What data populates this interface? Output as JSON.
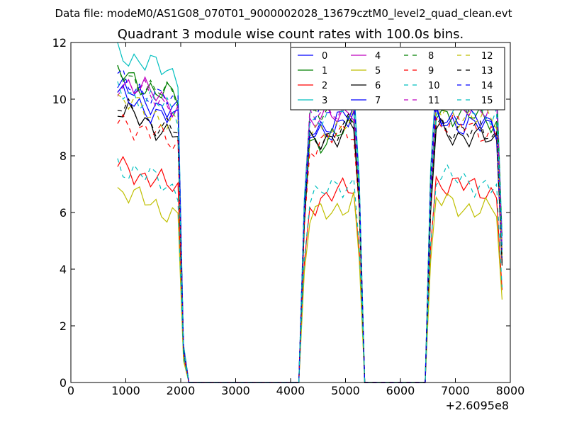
{
  "header": {
    "suptitle": "Data file: modeM0/AS1G08_070T01_9000002028_13679cztM0_level2_quad_clean.evt"
  },
  "chart_data": {
    "type": "line",
    "title": "Quadrant 3 module wise count rates with 100.0s bins.",
    "xlabel": "",
    "ylabel": "",
    "x_offset_label": "+2.6095e8",
    "xlim": [
      0,
      8000
    ],
    "ylim": [
      0,
      12
    ],
    "xticks": [
      "0",
      "1000",
      "2000",
      "3000",
      "4000",
      "5000",
      "6000",
      "7000",
      "8000"
    ],
    "yticks": [
      "0",
      "2",
      "4",
      "6",
      "8",
      "10",
      "12"
    ],
    "grid": false,
    "legend_position": "top-right",
    "legend_columns": 4,
    "segments": [
      {
        "x_start": 850,
        "x_end": 1950
      },
      {
        "x_start": 4350,
        "x_end": 5150
      },
      {
        "x_start": 6650,
        "x_end": 7750
      }
    ],
    "series": [
      {
        "name": "0",
        "color": "#0000ff",
        "dash": false,
        "base": [
          10.0,
          8.9,
          9.0
        ]
      },
      {
        "name": "1",
        "color": "#008000",
        "dash": false,
        "base": [
          10.5,
          8.6,
          9.3
        ]
      },
      {
        "name": "2",
        "color": "#ff0000",
        "dash": false,
        "base": [
          7.3,
          6.5,
          6.8
        ]
      },
      {
        "name": "3",
        "color": "#00bfbf",
        "dash": false,
        "base": [
          11.3,
          10.0,
          10.8
        ]
      },
      {
        "name": "4",
        "color": "#bf00bf",
        "dash": false,
        "base": [
          10.3,
          9.3,
          9.7
        ]
      },
      {
        "name": "5",
        "color": "#bfbf00",
        "dash": false,
        "base": [
          6.4,
          6.0,
          6.1
        ]
      },
      {
        "name": "6",
        "color": "#000000",
        "dash": false,
        "base": [
          9.2,
          8.6,
          8.6
        ]
      },
      {
        "name": "7",
        "color": "#0000ff",
        "dash": false,
        "base": [
          9.7,
          9.1,
          9.2
        ]
      },
      {
        "name": "8",
        "color": "#008000",
        "dash": true,
        "base": [
          10.5,
          9.7,
          10.5
        ]
      },
      {
        "name": "9",
        "color": "#ff0000",
        "dash": true,
        "base": [
          8.9,
          8.5,
          8.9
        ]
      },
      {
        "name": "10",
        "color": "#00bfbf",
        "dash": true,
        "base": [
          7.3,
          6.7,
          7.0
        ]
      },
      {
        "name": "11",
        "color": "#bf00bf",
        "dash": true,
        "base": [
          10.2,
          9.5,
          10.0
        ]
      },
      {
        "name": "12",
        "color": "#bfbf00",
        "dash": true,
        "base": [
          9.6,
          8.9,
          9.3
        ]
      },
      {
        "name": "13",
        "color": "#000000",
        "dash": true,
        "base": [
          9.3,
          8.7,
          8.8
        ]
      },
      {
        "name": "14",
        "color": "#0000ff",
        "dash": true,
        "base": [
          10.3,
          9.7,
          10.1
        ]
      },
      {
        "name": "15",
        "color": "#00bfbf",
        "dash": true,
        "base": [
          10.0,
          9.4,
          9.6
        ]
      }
    ]
  }
}
